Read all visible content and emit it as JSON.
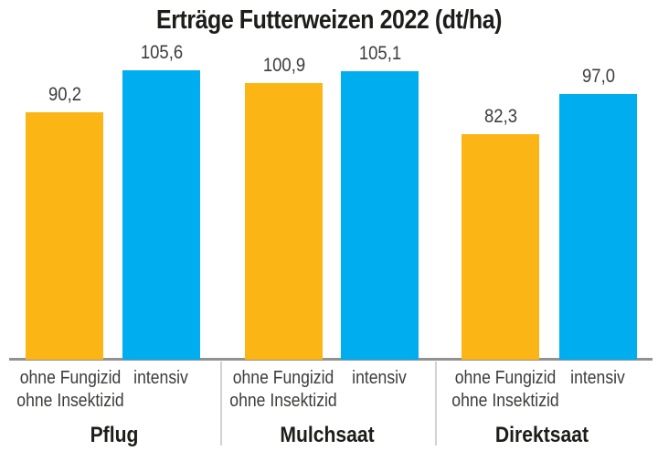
{
  "title": "Erträge Futterweizen 2022 (dt/ha)",
  "colors": {
    "bar_ohne": "#FBB515",
    "bar_intensiv": "#00AEEF",
    "axis_line": "#919191",
    "divider": "#d2d2d2",
    "title_text": "#1d1d1b",
    "label_text": "#3c3c3b"
  },
  "chart_data": {
    "type": "bar",
    "title": "Erträge Futterweizen 2022 (dt/ha)",
    "unit": "dt/ha",
    "categories": [
      "Pflug",
      "Mulchsaat",
      "Direktsaat"
    ],
    "series": [
      {
        "name": "ohne Fungizid ohne Insektizid",
        "label_lines": [
          "ohne Fungizid",
          "ohne Insektizid"
        ],
        "color": "#FBB515",
        "values": [
          90.2,
          100.9,
          82.3
        ],
        "value_labels": [
          "90,2",
          "100,9",
          "82,3"
        ]
      },
      {
        "name": "intensiv",
        "label_lines": [
          "intensiv"
        ],
        "color": "#00AEEF",
        "values": [
          105.6,
          105.1,
          97.0
        ],
        "value_labels": [
          "105,6",
          "105,1",
          "97,0"
        ]
      }
    ],
    "ylim": [
      0,
      130
    ],
    "grid": false,
    "axis": "x-baseline only, no y-axis ticks",
    "legend_position": "series labels below axis in each group"
  }
}
